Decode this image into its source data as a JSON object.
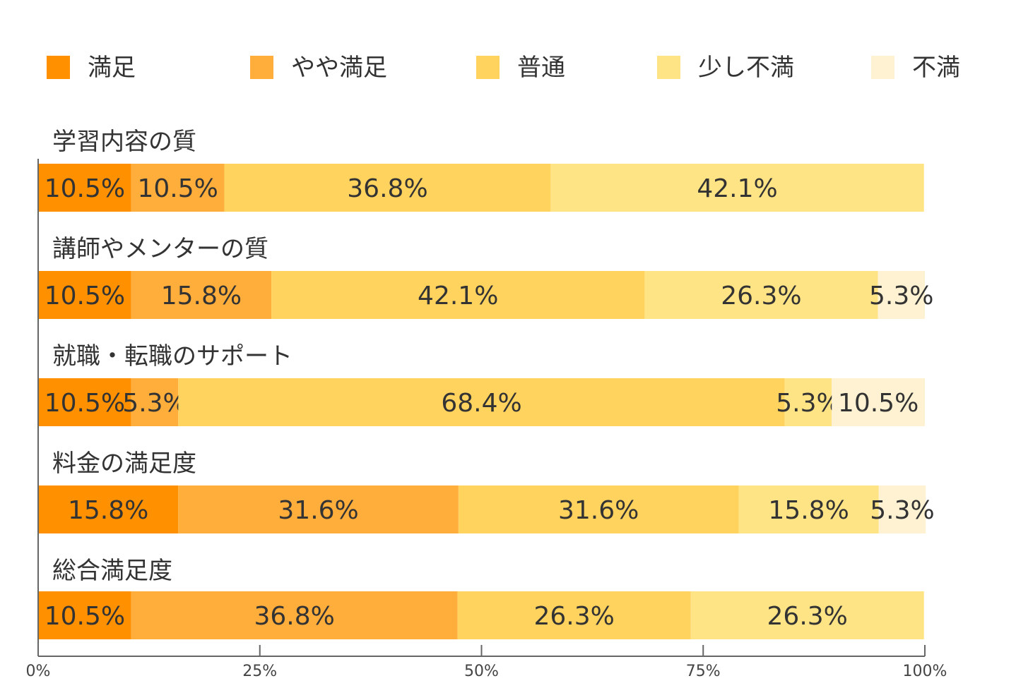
{
  "chart_data": {
    "type": "bar",
    "orientation": "horizontal",
    "stacked": true,
    "legend_position": "top",
    "grid": false,
    "xlim": [
      0,
      100
    ],
    "x_ticks": [
      "0%",
      "25%",
      "50%",
      "75%",
      "100%"
    ],
    "categories": [
      "学習内容の質",
      "講師やメンターの質",
      "就職・転職のサポート",
      "料金の満足度",
      "総合満足度"
    ],
    "series": [
      {
        "name": "満足",
        "color": "#FF9100",
        "values": [
          10.5,
          10.5,
          10.5,
          15.8,
          10.5
        ],
        "labels": [
          "10.5%",
          "10.5%",
          "10.5%",
          "15.8%",
          "10.5%"
        ]
      },
      {
        "name": "やや満足",
        "color": "#FFAE3C",
        "values": [
          10.5,
          15.8,
          5.3,
          31.6,
          36.8
        ],
        "labels": [
          "10.5%",
          "15.8%",
          "5.3%",
          "31.6%",
          "36.8%"
        ]
      },
      {
        "name": "普通",
        "color": "#FFD35E",
        "values": [
          36.8,
          42.1,
          68.4,
          31.6,
          26.3
        ],
        "labels": [
          "36.8%",
          "42.1%",
          "68.4%",
          "31.6%",
          "26.3%"
        ]
      },
      {
        "name": "少し不満",
        "color": "#FFE485",
        "values": [
          42.1,
          26.3,
          5.3,
          15.8,
          26.3
        ],
        "labels": [
          "42.1%",
          "26.3%",
          "5.3%",
          "15.8%",
          "26.3%"
        ]
      },
      {
        "name": "不満",
        "color": "#FFF2D2",
        "values": [
          0,
          5.3,
          10.5,
          5.3,
          0
        ],
        "labels": [
          "",
          "5.3%",
          "10.5%",
          "5.3%",
          ""
        ]
      }
    ]
  }
}
